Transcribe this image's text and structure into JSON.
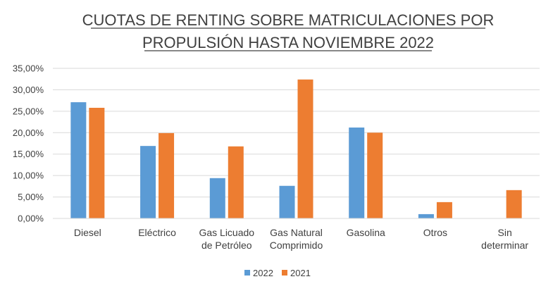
{
  "chart_data": {
    "type": "bar",
    "title_lines": [
      "CUOTAS DE RENTING SOBRE MATRICULACIONES POR",
      "PROPULSIÓN HASTA NOVIEMBRE 2022"
    ],
    "categories": [
      [
        "Diesel"
      ],
      [
        "Eléctrico"
      ],
      [
        "Gas Licuado",
        "de Petróleo"
      ],
      [
        "Gas Natural",
        "Comprimido"
      ],
      [
        "Gasolina"
      ],
      [
        "Otros"
      ],
      [
        "Sin",
        "determinar"
      ]
    ],
    "series": [
      {
        "name": "2022",
        "color": "#5b9bd5",
        "values": [
          27.1,
          16.9,
          9.4,
          7.6,
          21.2,
          1.0,
          0.0
        ]
      },
      {
        "name": "2021",
        "color": "#ed7d31",
        "values": [
          25.8,
          19.9,
          16.8,
          32.4,
          20.0,
          3.8,
          6.6
        ]
      }
    ],
    "ylim": [
      0,
      35
    ],
    "y_ticks": [
      "0,00%",
      "5,00%",
      "10,00%",
      "15,00%",
      "20,00%",
      "25,00%",
      "30,00%",
      "35,00%"
    ],
    "gridlines": true,
    "legend_position": "bottom",
    "xlabel": "",
    "ylabel": ""
  }
}
